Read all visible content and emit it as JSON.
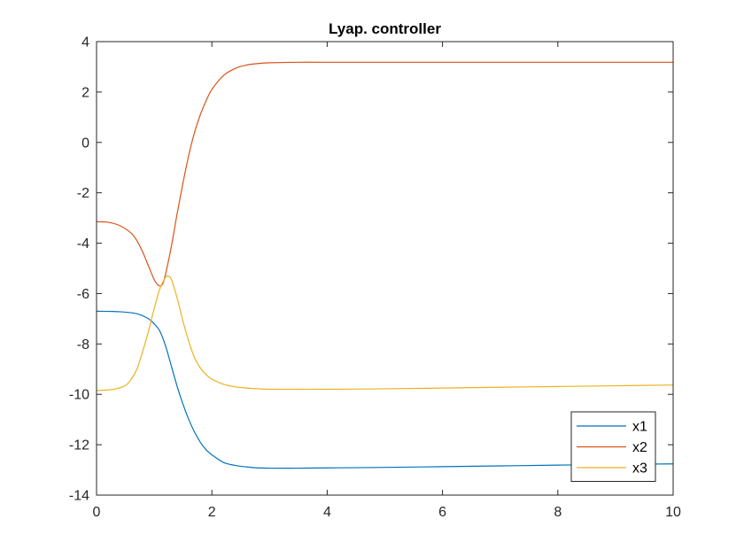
{
  "chart_data": {
    "type": "line",
    "title": "Lyap. controller",
    "xlabel": "",
    "ylabel": "",
    "xlim": [
      0,
      10
    ],
    "ylim": [
      -14,
      4
    ],
    "xticks": [
      0,
      2,
      4,
      6,
      8,
      10
    ],
    "xtick_labels": [
      "0",
      "2",
      "4",
      "6",
      "8",
      "10"
    ],
    "yticks": [
      4,
      2,
      0,
      -2,
      -4,
      -6,
      -8,
      -10,
      -12,
      -14
    ],
    "ytick_labels": [
      "4",
      "2",
      "0",
      "-2",
      "-4",
      "-6",
      "-8",
      "-10",
      "-12",
      "-14"
    ],
    "grid": false,
    "legend_position": "bottom-right",
    "series": [
      {
        "name": "x1",
        "color": "#0072BD",
        "x": [
          0,
          0.4,
          0.7,
          0.9,
          1.0,
          1.1,
          1.2,
          1.3,
          1.4,
          1.5,
          1.6,
          1.7,
          1.8,
          1.9,
          2.0,
          2.2,
          2.4,
          2.6,
          2.8,
          3.0,
          3.5,
          4,
          5,
          6,
          7,
          8,
          9,
          10
        ],
        "y": [
          -6.7,
          -6.72,
          -6.8,
          -7.0,
          -7.2,
          -7.5,
          -8.1,
          -8.9,
          -9.7,
          -10.4,
          -11.0,
          -11.5,
          -11.9,
          -12.2,
          -12.4,
          -12.7,
          -12.82,
          -12.88,
          -12.92,
          -12.93,
          -12.93,
          -12.92,
          -12.9,
          -12.87,
          -12.84,
          -12.81,
          -12.78,
          -12.76
        ]
      },
      {
        "name": "x2",
        "color": "#D95319",
        "x": [
          0,
          0.2,
          0.4,
          0.6,
          0.7,
          0.8,
          0.9,
          1.0,
          1.05,
          1.1,
          1.15,
          1.2,
          1.3,
          1.4,
          1.5,
          1.6,
          1.7,
          1.8,
          1.9,
          2.0,
          2.2,
          2.4,
          2.6,
          2.8,
          3.0,
          3.5,
          4,
          5,
          6,
          7,
          8,
          9,
          10
        ],
        "y": [
          -3.15,
          -3.17,
          -3.3,
          -3.6,
          -3.9,
          -4.35,
          -4.9,
          -5.45,
          -5.62,
          -5.7,
          -5.6,
          -5.2,
          -4.1,
          -2.8,
          -1.6,
          -0.5,
          0.4,
          1.1,
          1.65,
          2.1,
          2.65,
          2.93,
          3.07,
          3.13,
          3.16,
          3.18,
          3.18,
          3.18,
          3.18,
          3.18,
          3.18,
          3.18,
          3.18
        ]
      },
      {
        "name": "x3",
        "color": "#EDB120",
        "x": [
          0,
          0.3,
          0.5,
          0.6,
          0.7,
          0.8,
          0.9,
          1.0,
          1.1,
          1.2,
          1.25,
          1.3,
          1.4,
          1.5,
          1.6,
          1.7,
          1.8,
          1.9,
          2.0,
          2.2,
          2.4,
          2.6,
          2.8,
          3.0,
          3.5,
          4,
          5,
          6,
          7,
          8,
          9,
          10
        ],
        "y": [
          -9.85,
          -9.8,
          -9.65,
          -9.4,
          -9.0,
          -8.3,
          -7.5,
          -6.6,
          -5.8,
          -5.35,
          -5.32,
          -5.45,
          -6.2,
          -7.1,
          -7.9,
          -8.55,
          -8.95,
          -9.22,
          -9.4,
          -9.6,
          -9.7,
          -9.75,
          -9.78,
          -9.8,
          -9.8,
          -9.8,
          -9.78,
          -9.75,
          -9.72,
          -9.69,
          -9.66,
          -9.63
        ]
      }
    ]
  }
}
